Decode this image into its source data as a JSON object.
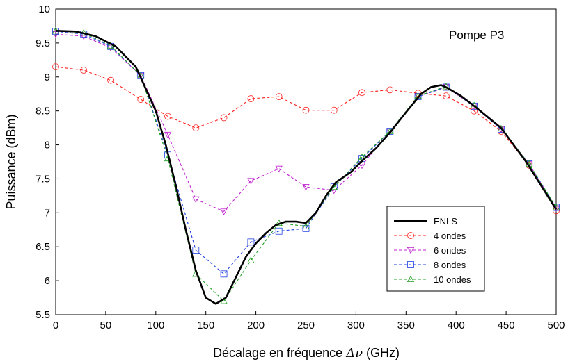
{
  "chart_data": {
    "type": "line",
    "title": "",
    "annotation": "Pompe P3",
    "xlabel_prefix": "Décalage en fréquence ",
    "xlabel_symbol": "Δν",
    "xlabel_suffix": " (GHz)",
    "ylabel": "Puissance (dBm)",
    "xlim": [
      0,
      500
    ],
    "ylim": [
      5.5,
      10
    ],
    "xticks": [
      0,
      50,
      100,
      150,
      200,
      250,
      300,
      350,
      400,
      450,
      500
    ],
    "yticks": [
      5.5,
      6,
      6.5,
      7,
      7.5,
      8,
      8.5,
      9,
      9.5,
      10
    ],
    "ytick_labels": [
      "5.5",
      "6",
      "6.5",
      "7",
      "7.5",
      "8",
      "8.5",
      "9",
      "9.5",
      "10"
    ],
    "grid": false,
    "legend_position": "bottom-right",
    "series": [
      {
        "name": "ENLS",
        "color": "#000000",
        "dash": "solid",
        "marker": "none",
        "points": [
          [
            0,
            9.68
          ],
          [
            20,
            9.67
          ],
          [
            40,
            9.6
          ],
          [
            60,
            9.45
          ],
          [
            80,
            9.15
          ],
          [
            100,
            8.5
          ],
          [
            110,
            8.0
          ],
          [
            120,
            7.4
          ],
          [
            130,
            6.75
          ],
          [
            140,
            6.15
          ],
          [
            150,
            5.75
          ],
          [
            160,
            5.66
          ],
          [
            170,
            5.75
          ],
          [
            180,
            6.05
          ],
          [
            190,
            6.35
          ],
          [
            200,
            6.55
          ],
          [
            210,
            6.7
          ],
          [
            220,
            6.82
          ],
          [
            230,
            6.87
          ],
          [
            240,
            6.87
          ],
          [
            250,
            6.85
          ],
          [
            260,
            7.0
          ],
          [
            270,
            7.25
          ],
          [
            280,
            7.45
          ],
          [
            295,
            7.6
          ],
          [
            305,
            7.75
          ],
          [
            320,
            7.95
          ],
          [
            335,
            8.2
          ],
          [
            350,
            8.48
          ],
          [
            365,
            8.75
          ],
          [
            375,
            8.85
          ],
          [
            385,
            8.88
          ],
          [
            390,
            8.85
          ],
          [
            405,
            8.72
          ],
          [
            420,
            8.55
          ],
          [
            445,
            8.25
          ],
          [
            470,
            7.75
          ],
          [
            500,
            7.05
          ]
        ]
      },
      {
        "name": "4 ondes",
        "color": "#ff2020",
        "dash": "4,3",
        "marker": "circle",
        "points": [
          [
            0,
            9.15
          ],
          [
            28,
            9.1
          ],
          [
            55,
            8.95
          ],
          [
            85,
            8.67
          ],
          [
            112,
            8.42
          ],
          [
            140,
            8.25
          ],
          [
            168,
            8.4
          ],
          [
            195,
            8.68
          ],
          [
            223,
            8.71
          ],
          [
            250,
            8.51
          ],
          [
            278,
            8.51
          ],
          [
            306,
            8.77
          ],
          [
            334,
            8.81
          ],
          [
            362,
            8.76
          ],
          [
            390,
            8.72
          ],
          [
            418,
            8.5
          ],
          [
            445,
            8.2
          ],
          [
            473,
            7.7
          ],
          [
            500,
            7.03
          ]
        ]
      },
      {
        "name": "6 ondes",
        "color": "#c020d0",
        "dash": "4,3",
        "marker": "triangle-down",
        "points": [
          [
            0,
            9.63
          ],
          [
            28,
            9.6
          ],
          [
            55,
            9.43
          ],
          [
            85,
            9.02
          ],
          [
            112,
            8.15
          ],
          [
            140,
            7.2
          ],
          [
            168,
            7.02
          ],
          [
            195,
            7.47
          ],
          [
            223,
            7.65
          ],
          [
            250,
            7.38
          ],
          [
            278,
            7.33
          ],
          [
            306,
            7.7
          ],
          [
            334,
            8.2
          ],
          [
            362,
            8.71
          ],
          [
            390,
            8.85
          ],
          [
            418,
            8.57
          ],
          [
            445,
            8.23
          ],
          [
            473,
            7.72
          ],
          [
            500,
            7.07
          ]
        ]
      },
      {
        "name": "8 ondes",
        "color": "#2040e0",
        "dash": "4,3",
        "marker": "square",
        "points": [
          [
            0,
            9.67
          ],
          [
            28,
            9.63
          ],
          [
            55,
            9.45
          ],
          [
            85,
            9.02
          ],
          [
            112,
            7.85
          ],
          [
            140,
            6.45
          ],
          [
            168,
            6.1
          ],
          [
            195,
            6.57
          ],
          [
            223,
            6.73
          ],
          [
            250,
            6.77
          ],
          [
            278,
            7.38
          ],
          [
            306,
            7.8
          ],
          [
            334,
            8.2
          ],
          [
            362,
            8.71
          ],
          [
            390,
            8.85
          ],
          [
            418,
            8.57
          ],
          [
            445,
            8.23
          ],
          [
            473,
            7.72
          ],
          [
            500,
            7.08
          ]
        ]
      },
      {
        "name": "10 ondes",
        "color": "#20a020",
        "dash": "4,3",
        "marker": "triangle-up",
        "points": [
          [
            0,
            9.68
          ],
          [
            28,
            9.65
          ],
          [
            55,
            9.46
          ],
          [
            85,
            9.02
          ],
          [
            112,
            7.8
          ],
          [
            140,
            6.1
          ],
          [
            168,
            5.7
          ],
          [
            195,
            6.3
          ],
          [
            223,
            6.85
          ],
          [
            250,
            6.8
          ],
          [
            278,
            7.38
          ],
          [
            306,
            7.82
          ],
          [
            334,
            8.2
          ],
          [
            362,
            8.72
          ],
          [
            390,
            8.86
          ],
          [
            418,
            8.58
          ],
          [
            445,
            8.24
          ],
          [
            473,
            7.72
          ],
          [
            500,
            7.08
          ]
        ]
      }
    ]
  }
}
